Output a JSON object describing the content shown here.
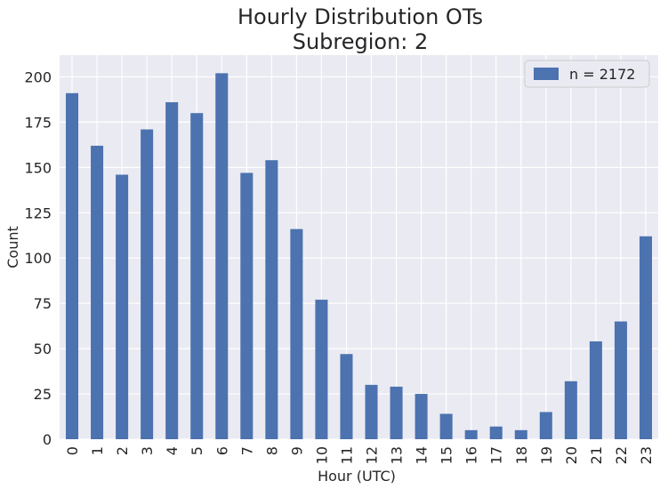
{
  "chart_data": {
    "type": "bar",
    "title": [
      "Hourly Distribution OTs",
      "Subregion: 2"
    ],
    "xlabel": "Hour (UTC)",
    "ylabel": "Count",
    "categories": [
      "0",
      "1",
      "2",
      "3",
      "4",
      "5",
      "6",
      "7",
      "8",
      "9",
      "10",
      "11",
      "12",
      "13",
      "14",
      "15",
      "16",
      "17",
      "18",
      "19",
      "20",
      "21",
      "22",
      "23"
    ],
    "series": [
      {
        "name": "n = 2172",
        "color": "#4c72b0",
        "values": [
          191,
          162,
          146,
          171,
          186,
          180,
          202,
          147,
          154,
          116,
          77,
          47,
          30,
          29,
          25,
          14,
          5,
          7,
          5,
          15,
          32,
          54,
          65,
          112
        ]
      }
    ],
    "ylim": [
      0,
      212
    ],
    "yticks": [
      0,
      25,
      50,
      75,
      100,
      125,
      150,
      175,
      200
    ],
    "grid": true,
    "legend_position": "top-right",
    "colors": {
      "background": "#eaeaf2",
      "grid": "#ffffff",
      "text": "#262626"
    }
  }
}
